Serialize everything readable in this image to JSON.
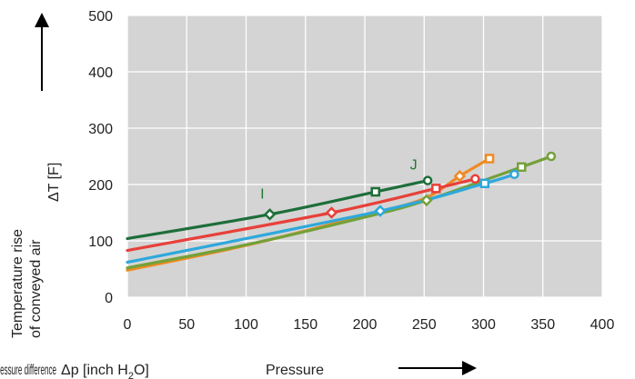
{
  "chart_data": {
    "type": "line",
    "title": "",
    "xlabel_prefix": "Pressure difference",
    "xlabel_symbol": "Δp [inch H",
    "xlabel_sub": "2",
    "xlabel_end": "O]",
    "xlabel_word": "Pressure",
    "ylabel_line1": "Temperature rise",
    "ylabel_line2": "of conveyed air",
    "ylabel_unit": "ΔT [F]",
    "xlim": [
      0,
      400
    ],
    "ylim": [
      0,
      500
    ],
    "xticks": [
      "0",
      "50",
      "100",
      "150",
      "200",
      "250",
      "300",
      "350",
      "400"
    ],
    "yticks": [
      "0",
      "100",
      "200",
      "300",
      "400",
      "500"
    ],
    "grid": true,
    "background": "#d4d4d4",
    "annotations": [
      {
        "text": "I",
        "x": 112,
        "y": 175
      },
      {
        "text": "J",
        "x": 238,
        "y": 227
      }
    ],
    "series": [
      {
        "color": "#1e6e3a",
        "x": [
          0,
          120,
          209,
          253
        ],
        "y": [
          104,
          147,
          187,
          207
        ],
        "markers": [
          {
            "x": 120,
            "y": 147,
            "shape": "diamond"
          },
          {
            "x": 209,
            "y": 187,
            "shape": "square"
          },
          {
            "x": 253,
            "y": 207,
            "shape": "circle"
          }
        ]
      },
      {
        "color": "#e8403a",
        "x": [
          0,
          172,
          260,
          293
        ],
        "y": [
          83,
          150,
          193,
          210
        ],
        "markers": [
          {
            "x": 172,
            "y": 150,
            "shape": "diamond"
          },
          {
            "x": 260,
            "y": 193,
            "shape": "square"
          },
          {
            "x": 293,
            "y": 210,
            "shape": "circle"
          }
        ]
      },
      {
        "color": "#f08a24",
        "x": [
          0,
          100,
          200,
          250,
          280,
          305
        ],
        "y": [
          48,
          92,
          145,
          175,
          215,
          246
        ],
        "markers": [
          {
            "x": 280,
            "y": 215,
            "shape": "diamond"
          },
          {
            "x": 305,
            "y": 246,
            "shape": "square"
          }
        ]
      },
      {
        "color": "#2ea8dc",
        "x": [
          0,
          213,
          301,
          326
        ],
        "y": [
          62,
          153,
          202,
          218
        ],
        "markers": [
          {
            "x": 213,
            "y": 153,
            "shape": "diamond"
          },
          {
            "x": 301,
            "y": 202,
            "shape": "square"
          },
          {
            "x": 326,
            "y": 218,
            "shape": "circle"
          }
        ]
      },
      {
        "color": "#74a13a",
        "x": [
          0,
          100,
          200,
          252,
          332,
          357
        ],
        "y": [
          52,
          93,
          142,
          172,
          231,
          250
        ],
        "markers": [
          {
            "x": 252,
            "y": 172,
            "shape": "diamond"
          },
          {
            "x": 332,
            "y": 231,
            "shape": "square"
          },
          {
            "x": 357,
            "y": 250,
            "shape": "circle"
          }
        ]
      }
    ]
  }
}
